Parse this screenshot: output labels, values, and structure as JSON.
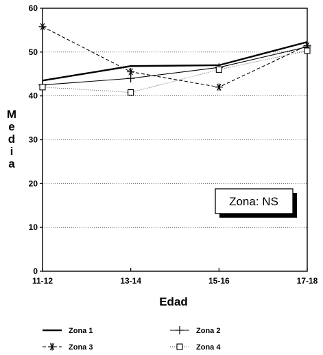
{
  "chart_data": {
    "type": "line",
    "categories": [
      "11-12",
      "13-14",
      "15-16",
      "17-18"
    ],
    "series": [
      {
        "name": "Zona 1",
        "values": [
          43.5,
          46.8,
          47.0,
          52.3
        ],
        "style": "solid-thick",
        "marker": "none"
      },
      {
        "name": "Zona 2",
        "values": [
          42.5,
          44.0,
          46.5,
          51.2
        ],
        "style": "solid",
        "marker": "plus"
      },
      {
        "name": "Zona 3",
        "values": [
          55.8,
          45.5,
          42.0,
          51.5
        ],
        "style": "dashed",
        "marker": "asterisk"
      },
      {
        "name": "Zona 4",
        "values": [
          42.0,
          40.8,
          46.0,
          50.3
        ],
        "style": "dotted",
        "marker": "square"
      }
    ],
    "xlabel": "Edad",
    "ylabel": "Media",
    "ylim": [
      0,
      60
    ],
    "yticks": [
      "0",
      "10",
      "20",
      "30",
      "40",
      "50",
      "60"
    ],
    "grid": "horizontal-dotted",
    "legend_position": "bottom",
    "annotation": "Zona: NS"
  }
}
